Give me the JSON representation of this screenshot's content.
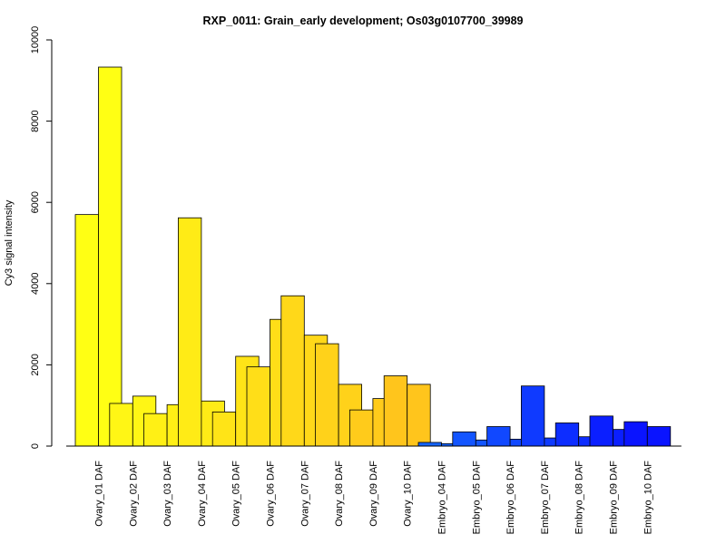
{
  "chart_data": {
    "type": "bar",
    "title": "RXP_0011: Grain_early development; Os03g0107700_39989",
    "xlabel": "",
    "ylabel": "Cy3 signal intensity",
    "ylim": [
      0,
      10000
    ],
    "yticks": [
      0,
      2000,
      4000,
      6000,
      8000,
      10000
    ],
    "categories": [
      "Ovary_01 DAF",
      "Ovary_02 DAF",
      "Ovary_03 DAF",
      "Ovary_04 DAF",
      "Ovary_05 DAF",
      "Ovary_06 DAF",
      "Ovary_07 DAF",
      "Ovary_08 DAF",
      "Ovary_09 DAF",
      "Ovary_10 DAF",
      "Embryo_04 DAF",
      "Embryo_05 DAF",
      "Embryo_06 DAF",
      "Embryo_07 DAF",
      "Embryo_08 DAF",
      "Embryo_09 DAF",
      "Embryo_10 DAF"
    ],
    "series": [
      {
        "values": [
          5700,
          1050,
          800,
          5620,
          840,
          1950,
          3700,
          2520,
          890,
          1730,
          90,
          350,
          480,
          1480,
          570,
          740,
          600
        ]
      },
      {
        "values": [
          9330,
          1230,
          1020,
          1110,
          2210,
          3120,
          2730,
          1520,
          1170,
          1520,
          60,
          150,
          170,
          200,
          230,
          410,
          480
        ]
      }
    ],
    "colors": [
      "#FFFF14",
      "#FFF615",
      "#FFF015",
      "#FFEB16",
      "#FFE417",
      "#FFDE18",
      "#FFD819",
      "#FFD21A",
      "#FFCB1B",
      "#FFC51C",
      "#1464FF",
      "#1355FF",
      "#1148FF",
      "#0F3AFF",
      "#0D2DFF",
      "#0B1FFF",
      "#0A14FF"
    ],
    "grid": false,
    "legend": "none"
  }
}
